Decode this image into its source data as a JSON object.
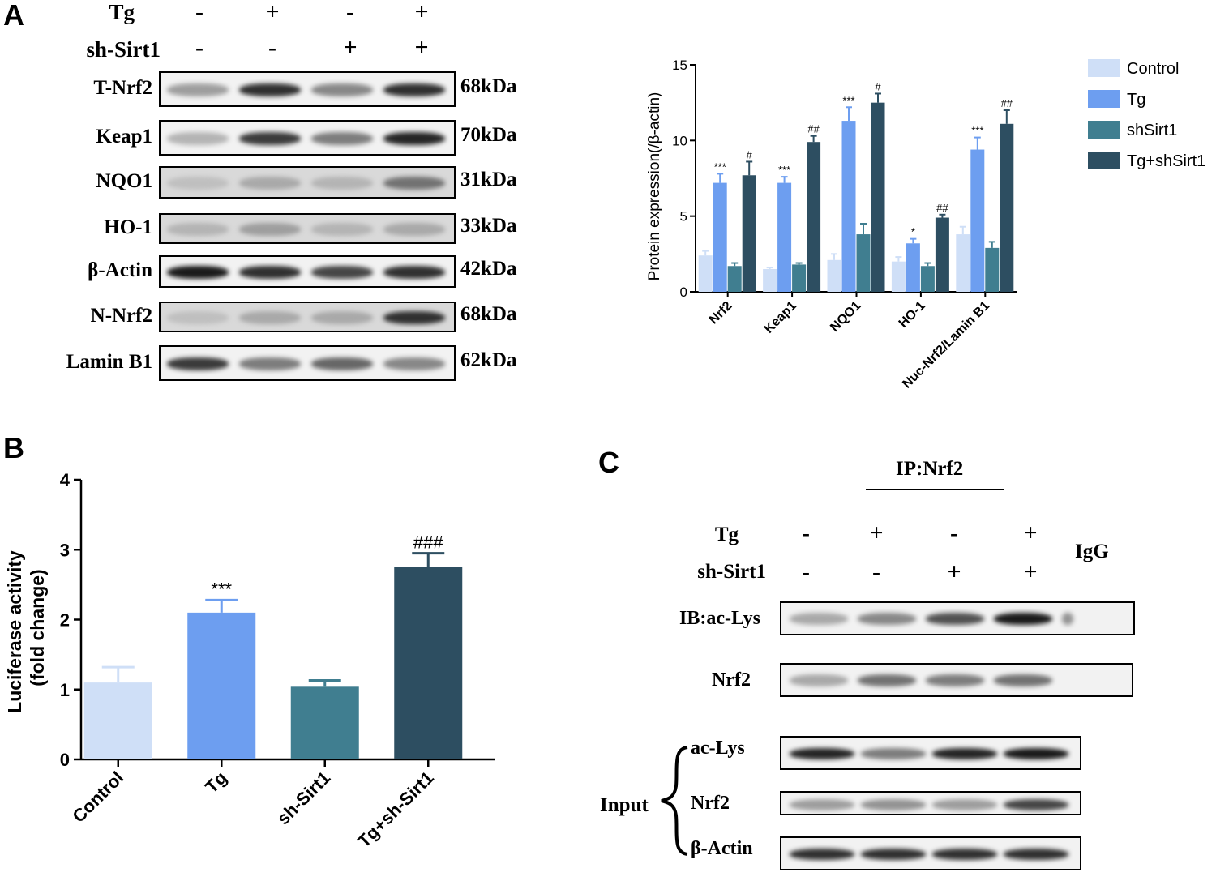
{
  "panel_labels": {
    "a": "A",
    "b": "B",
    "c": "C"
  },
  "panelA": {
    "treatments": [
      {
        "label": "Tg",
        "signs": [
          "-",
          "+",
          "-",
          "+"
        ]
      },
      {
        "label": "sh-Sirt1",
        "signs": [
          "-",
          "-",
          "+",
          "+"
        ]
      }
    ],
    "blots": [
      {
        "label": "T-Nrf2",
        "kda": "68kDa"
      },
      {
        "label": "Keap1",
        "kda": "70kDa"
      },
      {
        "label": "NQO1",
        "kda": "31kDa"
      },
      {
        "label": "HO-1",
        "kda": "33kDa"
      },
      {
        "label": "β-Actin",
        "kda": "42kDa"
      },
      {
        "label": "N-Nrf2",
        "kda": "68kDa"
      },
      {
        "label": "Lamin B1",
        "kda": "62kDa"
      }
    ]
  },
  "panelC": {
    "ip_label": "IP:Nrf2",
    "igg_label": "IgG",
    "input_label": "Input",
    "treatments": [
      {
        "label": "Tg",
        "signs": [
          "-",
          "+",
          "-",
          "+"
        ]
      },
      {
        "label": "sh-Sirt1",
        "signs": [
          "-",
          "-",
          "+",
          "+"
        ]
      }
    ],
    "ip_blots": [
      "IB:ac-Lys",
      "Nrf2"
    ],
    "input_blots": [
      "ac-Lys",
      "Nrf2",
      "β-Actin"
    ]
  },
  "colors": {
    "control": "#cfdff7",
    "tg": "#6d9ef0",
    "shsirt1": "#407e90",
    "tg_shsirt1": "#2d4e61"
  },
  "chart_data": [
    {
      "type": "bar",
      "title": "",
      "xlabel": "",
      "ylabel": "Protein  expression(/β-actin)",
      "ylim": [
        0,
        15
      ],
      "yticks": [
        0,
        5,
        10,
        15
      ],
      "categories": [
        "Nrf2",
        "Keap1",
        "NQO1",
        "HO-1",
        "Nuc-Nrf2/Lamin B1"
      ],
      "series": [
        {
          "name": "Control",
          "values": [
            2.4,
            1.5,
            2.1,
            2.0,
            3.8
          ],
          "errors": [
            0.3,
            0.1,
            0.4,
            0.3,
            0.5
          ],
          "marks": [
            "",
            "",
            "",
            "",
            ""
          ]
        },
        {
          "name": "Tg",
          "values": [
            7.2,
            7.2,
            11.3,
            3.2,
            9.4
          ],
          "errors": [
            0.6,
            0.4,
            0.9,
            0.3,
            0.8
          ],
          "marks": [
            "***",
            "***",
            "***",
            "*",
            "***"
          ]
        },
        {
          "name": "shSirt1",
          "values": [
            1.7,
            1.8,
            3.8,
            1.7,
            2.9
          ],
          "errors": [
            0.2,
            0.1,
            0.7,
            0.2,
            0.4
          ],
          "marks": [
            "",
            "",
            "",
            "",
            ""
          ]
        },
        {
          "name": "Tg+shSirt1",
          "values": [
            7.7,
            9.9,
            12.5,
            4.9,
            11.1
          ],
          "errors": [
            0.9,
            0.4,
            0.6,
            0.2,
            0.9
          ],
          "marks": [
            "#",
            "##",
            "#",
            "##",
            "##"
          ]
        }
      ],
      "legend": "right"
    },
    {
      "type": "bar",
      "title": "",
      "xlabel": "",
      "ylabel_lines": [
        "Luciferase activity",
        "(fold change)"
      ],
      "ylim": [
        0,
        4
      ],
      "yticks": [
        0,
        1,
        2,
        3,
        4
      ],
      "categories": [
        "Control",
        "Tg",
        "sh-Sirt1",
        "Tg+sh-Sirt1"
      ],
      "values": [
        1.1,
        2.1,
        1.04,
        2.75
      ],
      "errors": [
        0.22,
        0.18,
        0.09,
        0.2
      ],
      "marks": [
        "",
        "***",
        "",
        "###"
      ]
    }
  ]
}
